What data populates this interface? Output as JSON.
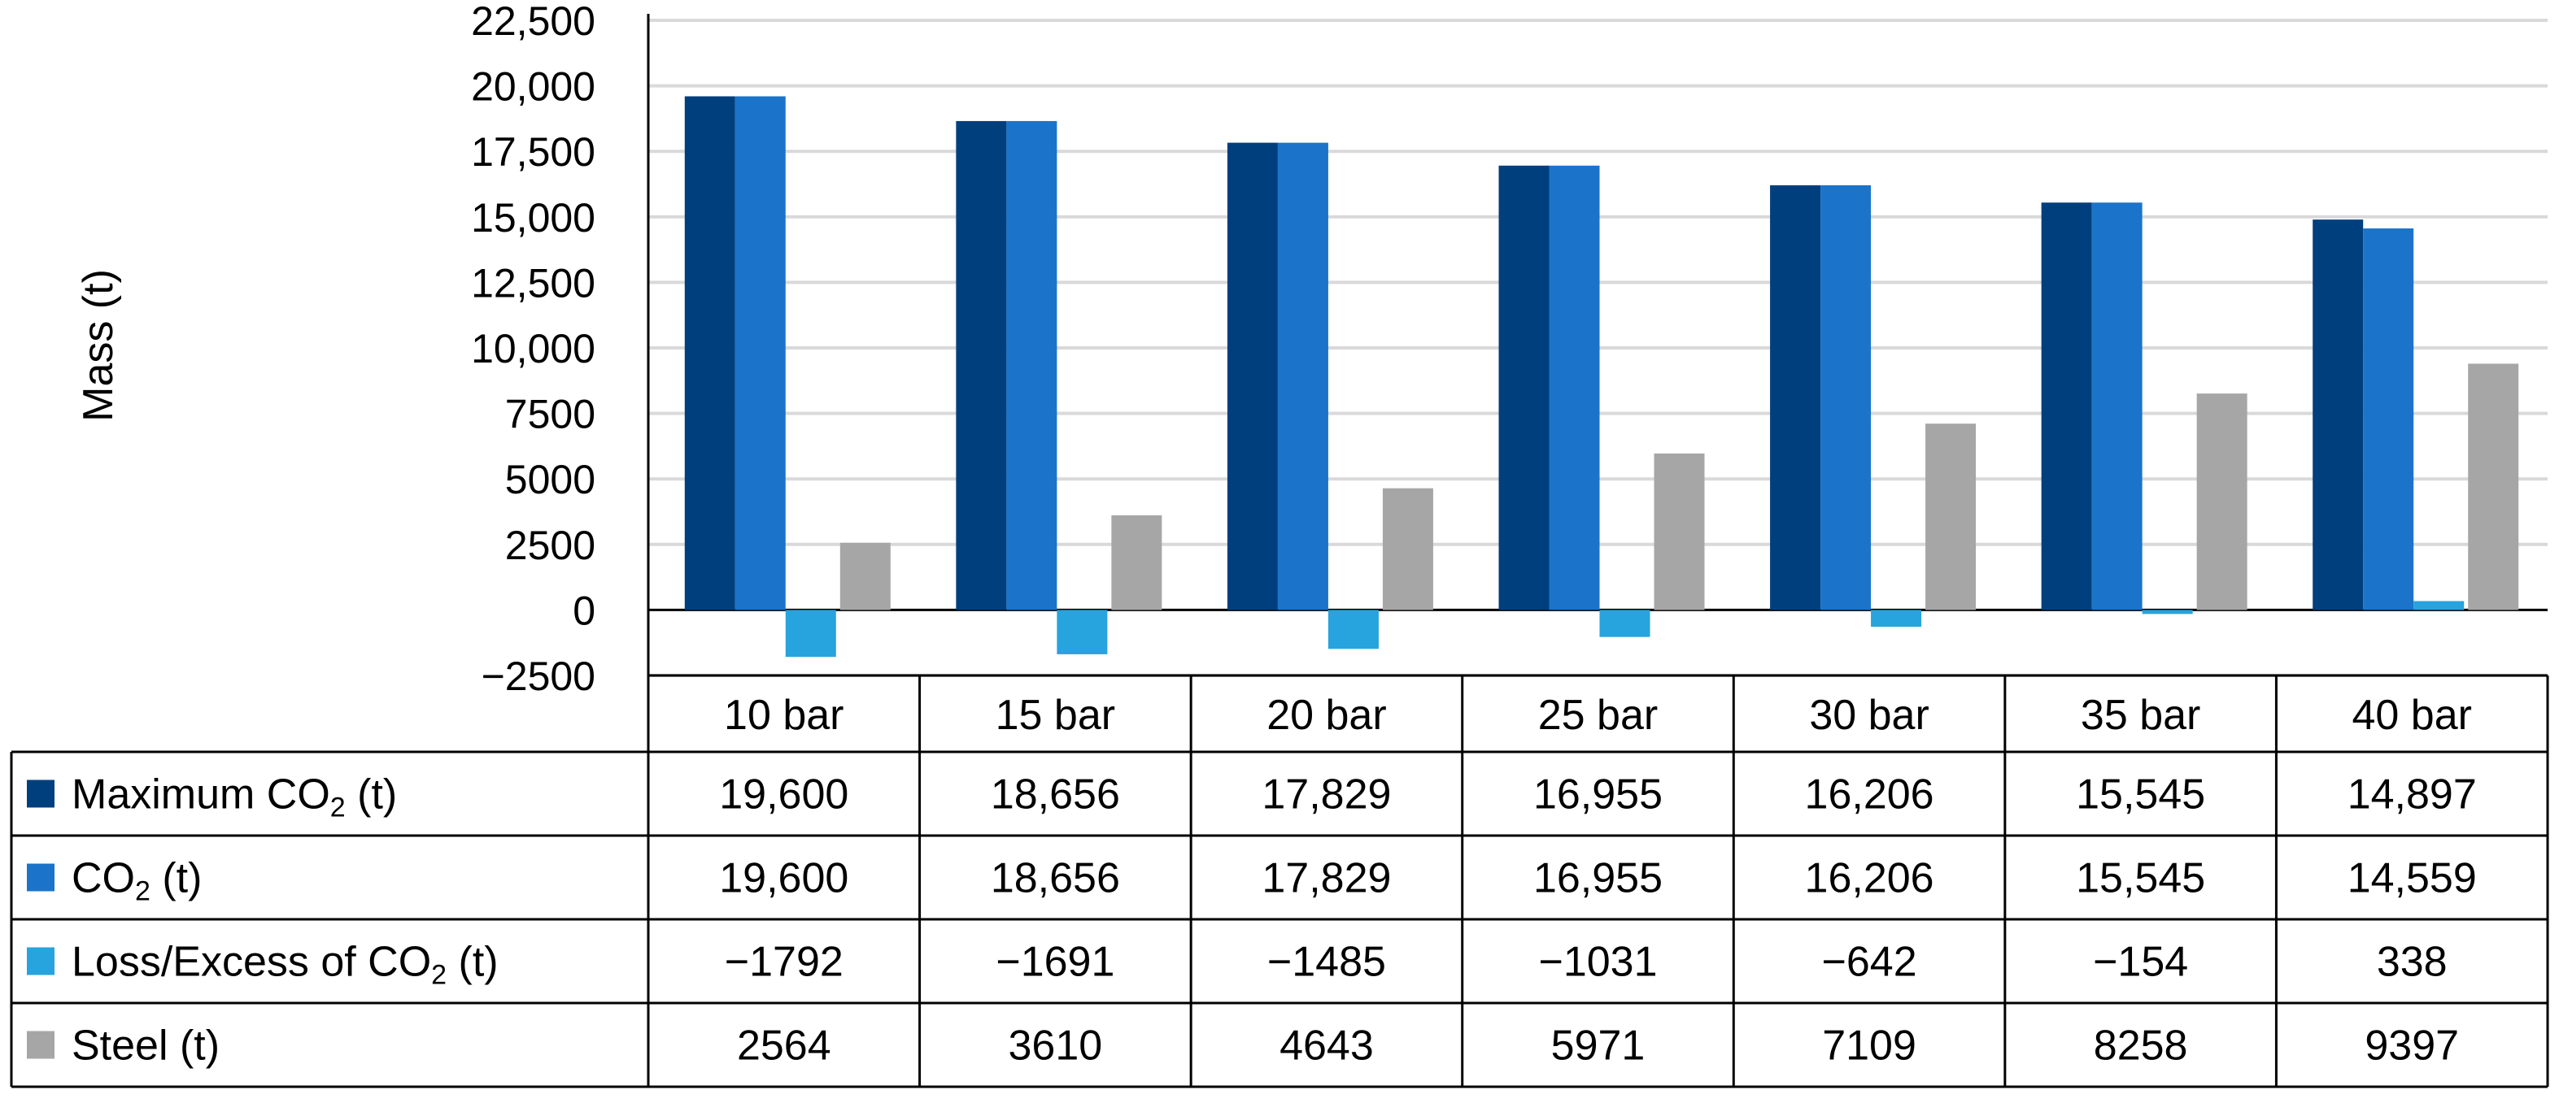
{
  "chart_data": {
    "type": "bar",
    "title": "",
    "xlabel": "",
    "ylabel": "Mass (t)",
    "ylim": [
      -2500,
      22500
    ],
    "yticks": [
      -2500,
      0,
      2500,
      5000,
      7500,
      10000,
      12500,
      15000,
      17500,
      20000,
      22500
    ],
    "ytick_labels": [
      "−2500",
      "0",
      "2500",
      "5000",
      "7500",
      "10,000",
      "12,500",
      "15,000",
      "17,500",
      "20,000",
      "22,500"
    ],
    "grid": true,
    "legend": "data-table",
    "categories": [
      "10 bar",
      "15 bar",
      "20 bar",
      "25 bar",
      "30 bar",
      "35 bar",
      "40 bar"
    ],
    "series": [
      {
        "name_main": "Maximum CO",
        "name_sub": "2",
        "name_tail": " (t)",
        "color": "#003f7d",
        "values": [
          19600,
          18656,
          17829,
          16955,
          16206,
          15545,
          14897
        ],
        "labels": [
          "19,600",
          "18,656",
          "17,829",
          "16,955",
          "16,206",
          "15,545",
          "14,897"
        ]
      },
      {
        "name_main": "CO",
        "name_sub": "2",
        "name_tail": " (t)",
        "color": "#1b74c9",
        "values": [
          19600,
          18656,
          17829,
          16955,
          16206,
          15545,
          14559
        ],
        "labels": [
          "19,600",
          "18,656",
          "17,829",
          "16,955",
          "16,206",
          "15,545",
          "14,559"
        ]
      },
      {
        "name_main": "Loss/Excess of CO",
        "name_sub": "2",
        "name_tail": " (t)",
        "color": "#27a3dd",
        "values": [
          -1792,
          -1691,
          -1485,
          -1031,
          -642,
          -154,
          338
        ],
        "labels": [
          "−1792",
          "−1691",
          "−1485",
          "−1031",
          "−642",
          "−154",
          "338"
        ]
      },
      {
        "name_main": "Steel (t)",
        "name_sub": "",
        "name_tail": "",
        "color": "#a6a6a6",
        "values": [
          2564,
          3610,
          4643,
          5971,
          7109,
          8258,
          9397
        ],
        "labels": [
          "2564",
          "3610",
          "4643",
          "5971",
          "7109",
          "8258",
          "9397"
        ]
      }
    ]
  }
}
